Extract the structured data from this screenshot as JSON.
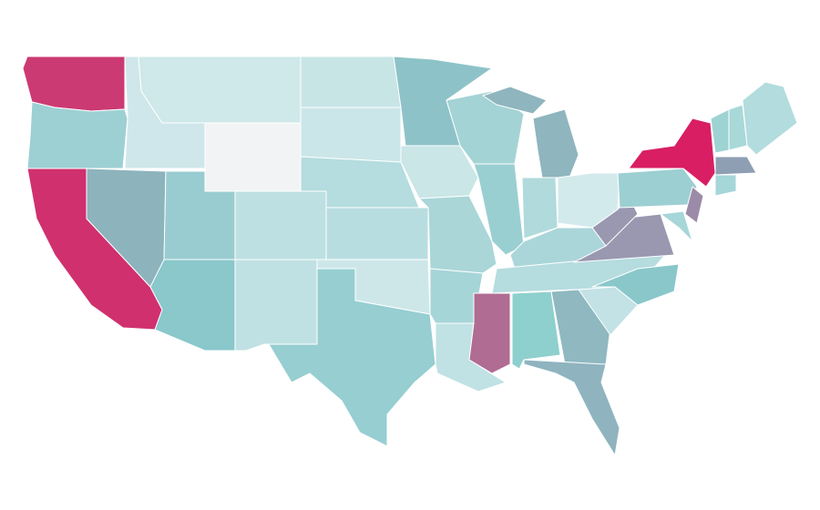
{
  "map": {
    "stroke": "#ffffff",
    "regions": [
      {
        "color": "#cc3a73"
      },
      {
        "color": "#9dd0d3"
      },
      {
        "color": "#d0306e"
      },
      {
        "color": "#8db3bc"
      },
      {
        "color": "#cfe7ea"
      },
      {
        "color": "#cfe8ea"
      },
      {
        "color": "#f1f3f4"
      },
      {
        "color": "#99ccd0"
      },
      {
        "color": "#bde0e2"
      },
      {
        "color": "#8ac8cc"
      },
      {
        "color": "#c0e1e3"
      },
      {
        "color": "#c8e5e6"
      },
      {
        "color": "#cbe6e8"
      },
      {
        "color": "#b5dcde"
      },
      {
        "color": "#b8dde0"
      },
      {
        "color": "#cde7e9"
      },
      {
        "color": "#96ced1"
      },
      {
        "color": "#8dc3c8"
      },
      {
        "color": "#cae6e7"
      },
      {
        "color": "#aad6d8"
      },
      {
        "color": "#a6d5d8"
      },
      {
        "color": "#c0e2e4"
      },
      {
        "color": "#a4d3d5"
      },
      {
        "color": "#9acfd2"
      },
      {
        "color": "#8fb5be"
      },
      {
        "color": "#b0dadc"
      },
      {
        "color": "#d3eaec"
      },
      {
        "color": "#aad6d9"
      },
      {
        "color": "#b5dcdf"
      },
      {
        "color": "#b06c93"
      },
      {
        "color": "#8ed0cd"
      },
      {
        "color": "#8fb8c0"
      },
      {
        "color": "#8fb4bf"
      },
      {
        "color": "#c3e2e5"
      },
      {
        "color": "#8ac7cb"
      },
      {
        "color": "#9a98b0"
      },
      {
        "color": "#9a98b0"
      },
      {
        "color": "#9ccfd2"
      },
      {
        "color": "#d91e63"
      },
      {
        "color": "#9c8ba8"
      },
      {
        "color": "#a6d6d8"
      },
      {
        "color": "#9ed3d3"
      },
      {
        "color": "#a9d8d9"
      },
      {
        "color": "#b2dcdd"
      },
      {
        "color": "#8f9fb3"
      },
      {
        "color": "#a5d6d8"
      },
      {
        "color": "#8fb5be"
      }
    ]
  }
}
